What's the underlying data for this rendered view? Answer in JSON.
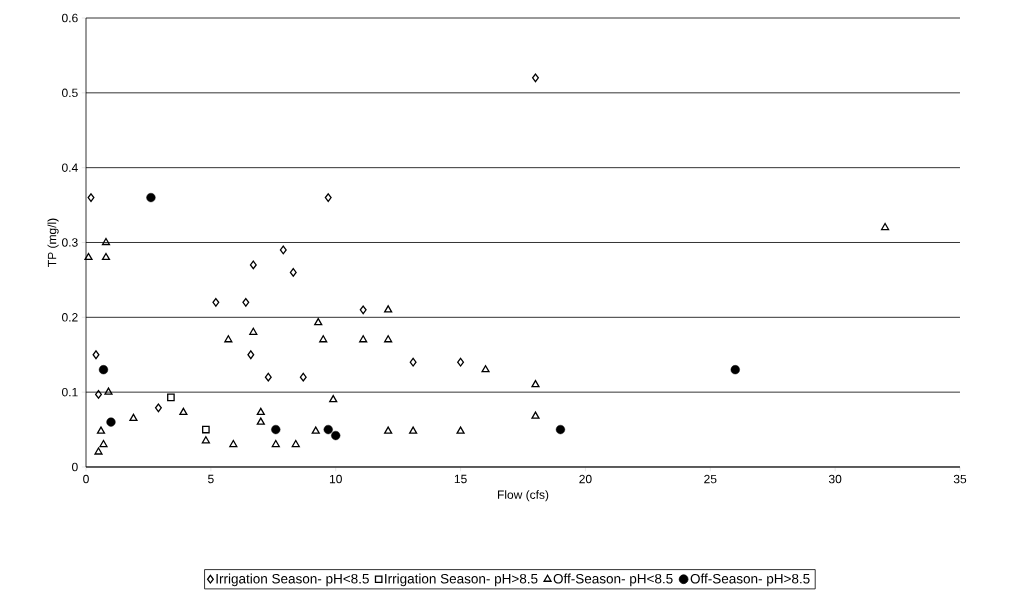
{
  "chart_data": {
    "type": "scatter",
    "xlabel": "Flow (cfs)",
    "ylabel": "TP (mg/l)",
    "xlim": [
      0,
      35
    ],
    "xticks": [
      0,
      5,
      10,
      15,
      20,
      25,
      30,
      35
    ],
    "ylim": [
      0,
      0.6
    ],
    "yticks": [
      0,
      0.1,
      0.2,
      0.3,
      0.4,
      0.5,
      0.6
    ],
    "grid": "y",
    "legend": "bottom",
    "series": [
      {
        "name": "Irrigation Season- pH<8.5",
        "color": "#000000",
        "marker": "diamond",
        "x": [
          0.2,
          0.4,
          0.5,
          2.9,
          5.2,
          6.4,
          6.7,
          6.6,
          7.3,
          7.9,
          8.3,
          8.7,
          9.7,
          11.1,
          13.1,
          15,
          18
        ],
        "values": [
          0.36,
          0.15,
          0.097,
          0.079,
          0.22,
          0.22,
          0.27,
          0.15,
          0.12,
          0.29,
          0.26,
          0.12,
          0.36,
          0.21,
          0.14,
          0.14,
          0.52
        ]
      },
      {
        "name": "Irrigation Season- pH>8.5",
        "color": "#000000",
        "marker": "square",
        "x": [
          3.4,
          4.8
        ],
        "values": [
          0.093,
          0.05
        ]
      },
      {
        "name": "Off-Season- pH<8.5",
        "color": "#000000",
        "marker": "triangle",
        "x": [
          0.1,
          0.8,
          0.8,
          0.5,
          0.7,
          0.6,
          0.9,
          1.9,
          3.9,
          4.8,
          5.9,
          5.7,
          6.7,
          7.0,
          7.0,
          7.6,
          8.4,
          9.2,
          9.3,
          9.5,
          9.9,
          11.1,
          12.1,
          12.1,
          12.1,
          13.1,
          15,
          16,
          18,
          18,
          32
        ],
        "values": [
          0.28,
          0.3,
          0.28,
          0.02,
          0.03,
          0.048,
          0.1,
          0.065,
          0.073,
          0.035,
          0.03,
          0.17,
          0.18,
          0.073,
          0.06,
          0.03,
          0.03,
          0.048,
          0.193,
          0.17,
          0.09,
          0.17,
          0.21,
          0.17,
          0.048,
          0.048,
          0.048,
          0.13,
          0.11,
          0.068,
          0.32
        ]
      },
      {
        "name": "Off-Season- pH>8.5",
        "color": "#000000",
        "marker": "circle",
        "x": [
          2.6,
          0.7,
          1.0,
          7.6,
          9.7,
          10,
          19,
          26
        ],
        "values": [
          0.36,
          0.13,
          0.06,
          0.05,
          0.05,
          0.042,
          0.05,
          0.13
        ]
      }
    ]
  }
}
